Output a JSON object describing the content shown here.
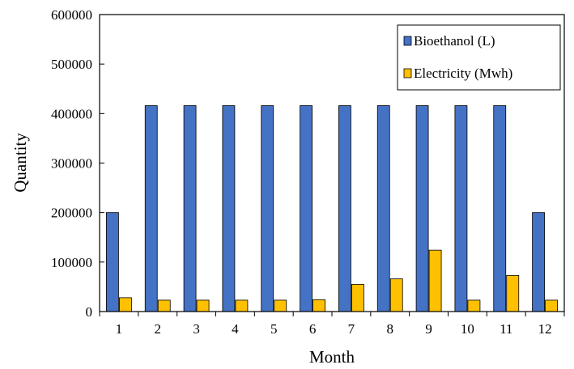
{
  "chart_data": {
    "type": "bar",
    "title": "",
    "xlabel": "Month",
    "ylabel": "Quantity",
    "categories": [
      "1",
      "2",
      "3",
      "4",
      "5",
      "6",
      "7",
      "8",
      "9",
      "10",
      "11",
      "12"
    ],
    "ylim": [
      0,
      600000
    ],
    "yticks": [
      "0",
      "100000",
      "200000",
      "300000",
      "400000",
      "500000",
      "600000"
    ],
    "grid": false,
    "legend_position": "top-right",
    "series": [
      {
        "name": "Bioethanol (L)",
        "color": "#4472C4",
        "values": [
          200000,
          416000,
          416000,
          416000,
          416000,
          416000,
          416000,
          416000,
          416000,
          416000,
          416000,
          200000
        ]
      },
      {
        "name": "Electricity (Mwh)",
        "color": "#FFC000",
        "values": [
          28000,
          23000,
          23000,
          23000,
          23000,
          24000,
          55000,
          66000,
          124000,
          23000,
          73000,
          23000
        ]
      }
    ]
  }
}
